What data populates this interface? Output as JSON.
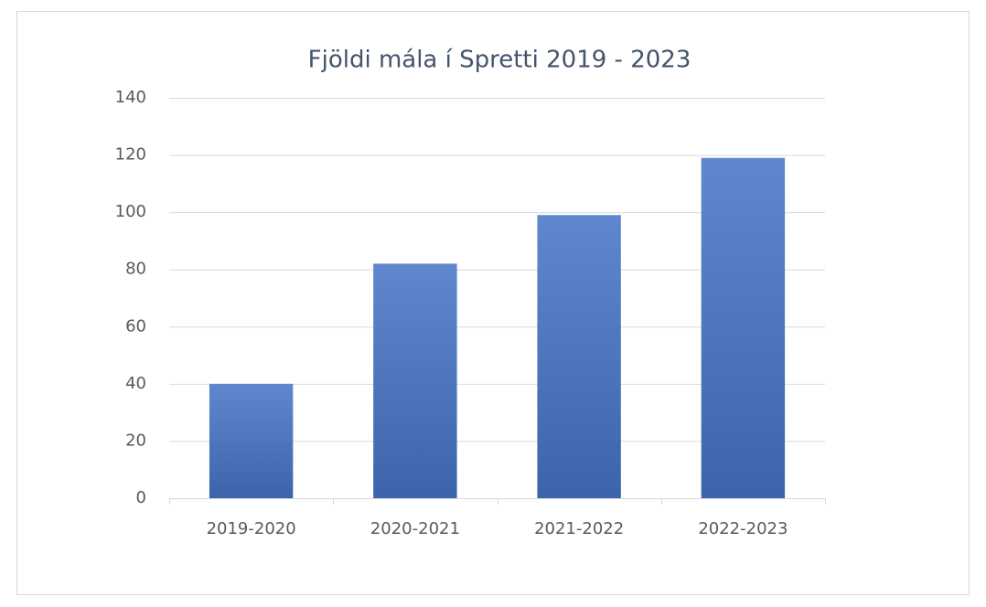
{
  "chart_data": {
    "type": "bar",
    "title": "Fjöldi mála í Spretti 2019 - 2023",
    "categories": [
      "2019-2020",
      "2020-2021",
      "2021-2022",
      "2022-2023"
    ],
    "values": [
      40,
      82,
      99,
      119
    ],
    "color": "#4472c4",
    "ylim": [
      0,
      140
    ],
    "yticks": [
      0,
      20,
      40,
      60,
      80,
      100,
      120,
      140
    ],
    "grid": true
  }
}
